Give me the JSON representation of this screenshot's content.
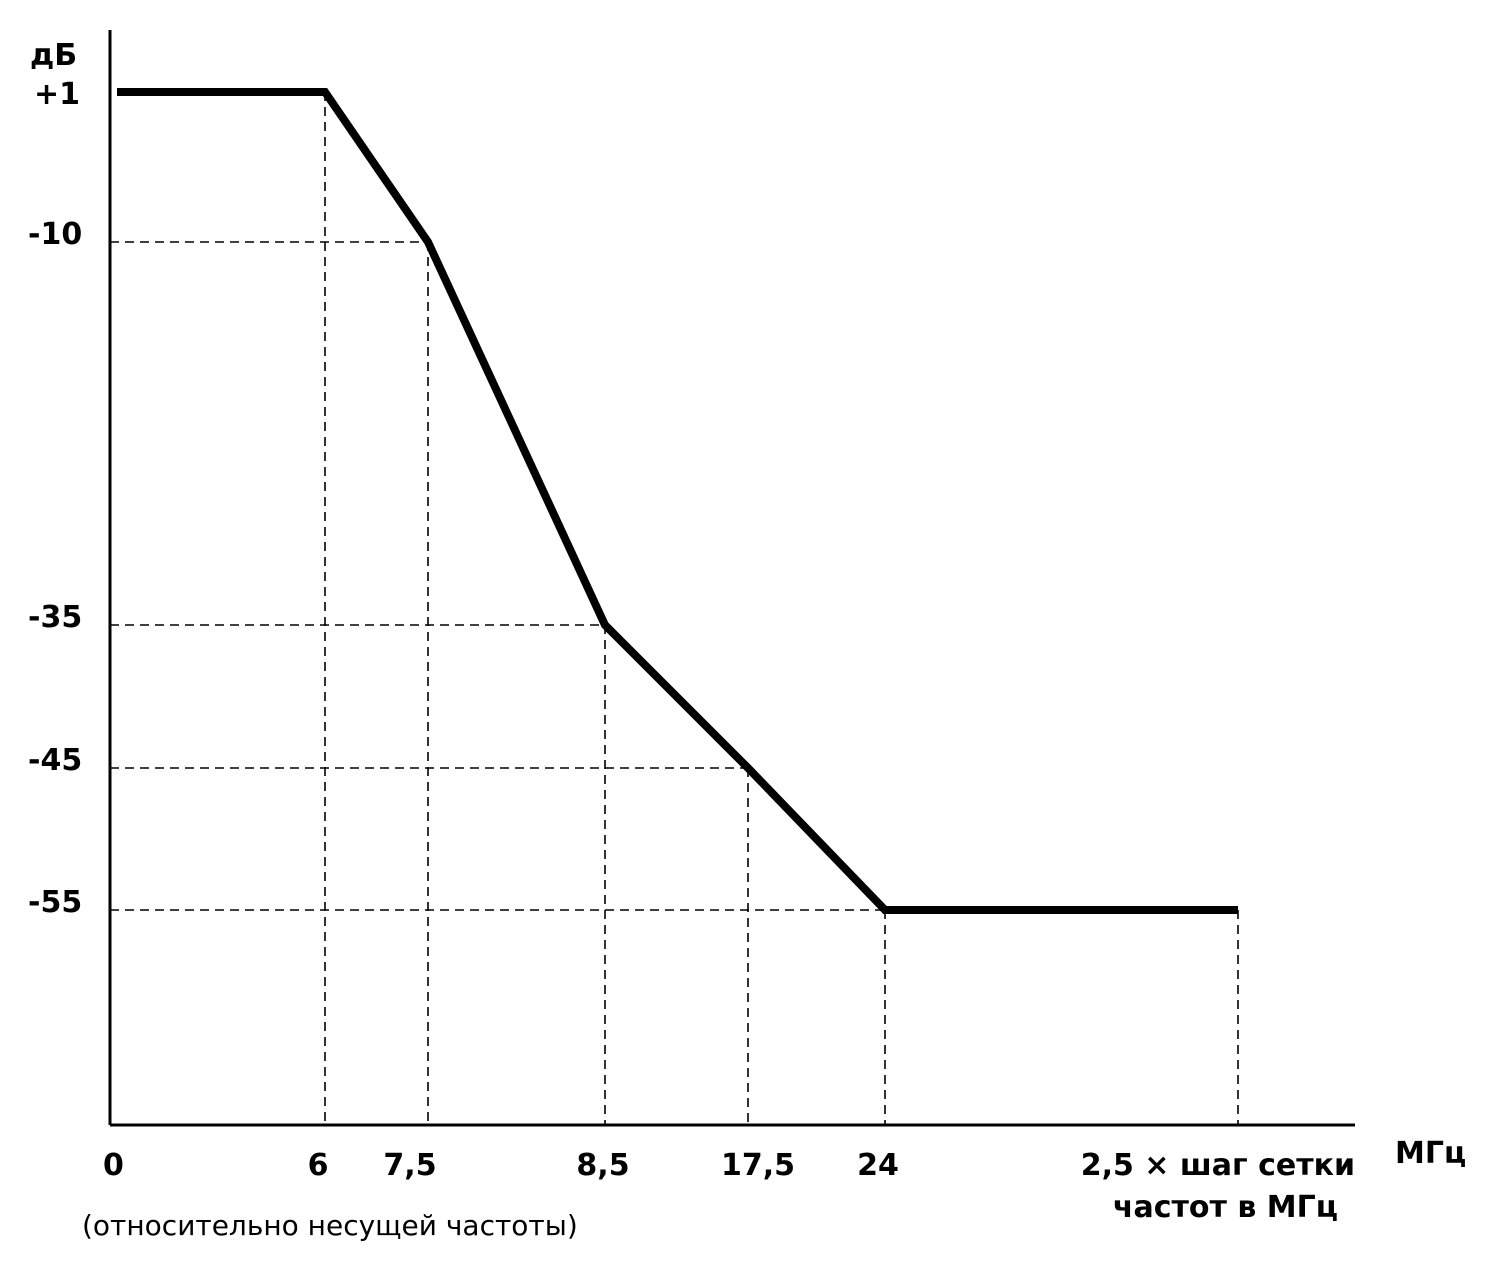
{
  "chart_data": {
    "type": "line",
    "y_unit_label": "дБ",
    "x_unit_label": "МГц",
    "note": "(относительно несущей частоты)",
    "x_ticks": [
      {
        "label": "0"
      },
      {
        "label": "6"
      },
      {
        "label": "7,5"
      },
      {
        "label": "8,5"
      },
      {
        "label": "17,5"
      },
      {
        "label": "24"
      },
      {
        "label": "2,5 × шаг сетки",
        "label2": "частот в МГц"
      }
    ],
    "y_ticks": [
      {
        "label": "+1",
        "value": 1
      },
      {
        "label": "-10",
        "value": -10
      },
      {
        "label": "-35",
        "value": -35
      },
      {
        "label": "-45",
        "value": -45
      },
      {
        "label": "-55",
        "value": -55
      }
    ],
    "series": [
      {
        "points": [
          {
            "x_tick": 0,
            "y": 1
          },
          {
            "x_tick": 1,
            "y": 1
          },
          {
            "x_tick": 2,
            "y": -10
          },
          {
            "x_tick": 3,
            "y": -35
          },
          {
            "x_tick": 4,
            "y": -45
          },
          {
            "x_tick": 5,
            "y": -55
          },
          {
            "x_tick": 6,
            "y": -55
          }
        ]
      }
    ],
    "grid": false
  }
}
